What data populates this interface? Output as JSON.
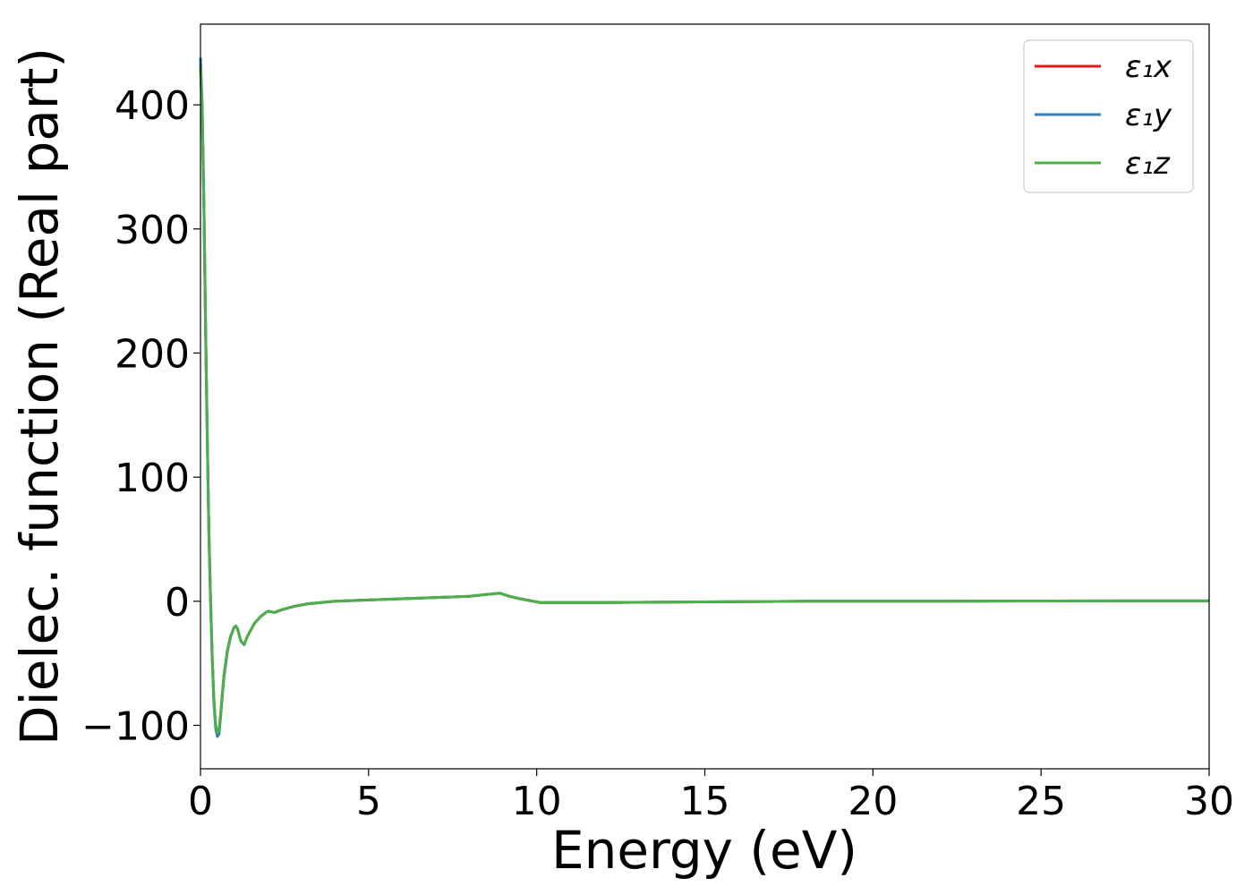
{
  "chart_data": {
    "type": "line",
    "title": "",
    "xlabel": "Energy (eV)",
    "ylabel": "Dielec. function (Real part)",
    "xlim": [
      0,
      30
    ],
    "ylim": [
      -135,
      465
    ],
    "xticks": [
      "0",
      "5",
      "10",
      "15",
      "20",
      "25",
      "30"
    ],
    "yticks": [
      "−100",
      "0",
      "100",
      "200",
      "300",
      "400"
    ],
    "xtick_values": [
      0,
      5,
      10,
      15,
      20,
      25,
      30
    ],
    "ytick_values": [
      -100,
      0,
      100,
      200,
      300,
      400
    ],
    "grid": false,
    "legend_position": "top-right",
    "series": [
      {
        "name": "ε₁x",
        "color": "#e41a1c",
        "x": [
          0,
          0.05,
          0.1,
          0.15,
          0.2,
          0.25,
          0.3,
          0.35,
          0.4,
          0.45,
          0.5,
          0.55,
          0.6,
          0.65,
          0.7,
          0.8,
          0.9,
          1.0,
          1.05,
          1.1,
          1.2,
          1.3,
          1.4,
          1.6,
          1.8,
          2.0,
          2.2,
          2.4,
          2.8,
          3.2,
          4,
          5,
          6,
          7,
          8,
          8.5,
          8.9,
          9.2,
          9.5,
          9.8,
          10.1,
          10.5,
          12,
          15,
          18,
          20,
          22,
          25,
          28,
          30
        ],
        "y": [
          432,
          395,
          320,
          225,
          135,
          55,
          0,
          -45,
          -80,
          -100,
          -107,
          -105,
          -92,
          -75,
          -60,
          -40,
          -28,
          -21,
          -20,
          -22,
          -32,
          -35,
          -28,
          -18,
          -12,
          -8,
          -9,
          -7,
          -4,
          -2,
          0,
          1,
          2,
          3,
          4,
          5.5,
          6.5,
          4,
          2,
          0.5,
          -1,
          -1,
          -1,
          -0.5,
          0,
          0,
          0,
          0.2,
          0.3,
          0.3
        ]
      },
      {
        "name": "ε₁y",
        "color": "#377eb8",
        "x": [
          0,
          0.05,
          0.1,
          0.15,
          0.2,
          0.25,
          0.3,
          0.35,
          0.4,
          0.45,
          0.5,
          0.55,
          0.6,
          0.65,
          0.7,
          0.8,
          0.9,
          1.0,
          1.05,
          1.1,
          1.2,
          1.3,
          1.4,
          1.6,
          1.8,
          2.0,
          2.2,
          2.4,
          2.8,
          3.2,
          4,
          5,
          6,
          7,
          8,
          8.5,
          8.9,
          9.2,
          9.5,
          9.8,
          10.1,
          10.5,
          12,
          15,
          18,
          20,
          22,
          25,
          28,
          30
        ],
        "y": [
          438,
          400,
          325,
          228,
          138,
          57,
          0,
          -46,
          -82,
          -102,
          -109,
          -107,
          -93,
          -76,
          -61,
          -40,
          -28,
          -21,
          -20,
          -22,
          -32,
          -35,
          -28,
          -18,
          -12,
          -8,
          -9,
          -7,
          -4,
          -2,
          0,
          1,
          2,
          3,
          4,
          5.5,
          6.5,
          4,
          2,
          0.5,
          -1,
          -1,
          -1,
          -0.5,
          0,
          0,
          0,
          0.2,
          0.3,
          0.3
        ]
      },
      {
        "name": "ε₁z",
        "color": "#4daf4a",
        "x": [
          0,
          0.05,
          0.1,
          0.15,
          0.2,
          0.25,
          0.3,
          0.35,
          0.4,
          0.45,
          0.5,
          0.55,
          0.6,
          0.65,
          0.7,
          0.8,
          0.9,
          1.0,
          1.05,
          1.1,
          1.2,
          1.3,
          1.4,
          1.6,
          1.8,
          2.0,
          2.2,
          2.4,
          2.8,
          3.2,
          4,
          5,
          6,
          7,
          8,
          8.5,
          8.9,
          9.2,
          9.5,
          9.8,
          10.1,
          10.5,
          12,
          15,
          18,
          20,
          22,
          25,
          28,
          30
        ],
        "y": [
          430,
          393,
          318,
          223,
          133,
          54,
          0,
          -44,
          -79,
          -99,
          -106,
          -104,
          -91,
          -74,
          -59,
          -39,
          -28,
          -21,
          -20,
          -22,
          -32,
          -35,
          -28,
          -18,
          -12,
          -8,
          -9,
          -7,
          -4,
          -2,
          0,
          1,
          2,
          3,
          4,
          5.5,
          6.5,
          4,
          2,
          0.5,
          -1,
          -1,
          -1,
          -0.5,
          0,
          0,
          0,
          0.2,
          0.3,
          0.3
        ]
      }
    ]
  }
}
